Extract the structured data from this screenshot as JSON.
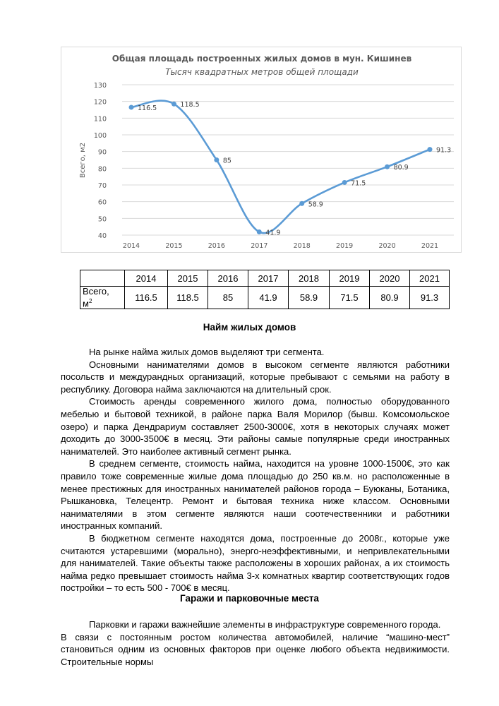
{
  "chart_data": {
    "type": "line",
    "title": "Общая площадь построенных жилых домов в мун. Кишинев",
    "subtitle": "Тысяч квадратных метров общей площади",
    "xlabel": "",
    "ylabel": "Всего, м2",
    "categories": [
      "2014",
      "2015",
      "2016",
      "2017",
      "2018",
      "2019",
      "2020",
      "2021"
    ],
    "values": [
      116.5,
      118.5,
      85,
      41.9,
      58.9,
      71.5,
      80.9,
      91.3
    ],
    "labels": [
      "116.5",
      "118.5",
      "85",
      "41.9",
      "58.9",
      "71.5",
      "80.9",
      "91.3"
    ],
    "ylim": [
      40,
      130
    ],
    "yticks": [
      "40",
      "50",
      "60",
      "70",
      "80",
      "90",
      "100",
      "110",
      "120",
      "130"
    ],
    "grid": true,
    "smooth": true,
    "color": "#5b9bd5"
  },
  "table": {
    "years": [
      "2014",
      "2015",
      "2016",
      "2017",
      "2018",
      "2019",
      "2020",
      "2021"
    ],
    "row_label": "Всего,",
    "row_label_unit": "м",
    "row_label_sup": "2",
    "values": [
      "116.5",
      "118.5",
      "85",
      "41.9",
      "58.9",
      "71.5",
      "80.9",
      "91.3"
    ]
  },
  "section1": {
    "heading": "Найм жилых домов",
    "paragraphs": [
      "На рынке найма жилых домов выделяют три сегмента.",
      "Основными нанимателями домов в высоком сегменте являются работники посольств и междурандных организаций, которые пребывают с семьями на работу в республику. Договора найма заключаются   на длительный срок.",
      "Стоимость аренды современного жилого дома, полностью оборудованного мебелью и бытовой техникой, в районе парка Валя Морилор (бывш. Комсомольское озеро) и парка Дендрариум составляет 2500-3000€, хотя в некоторых случаях может доходить до 3000-3500€ в месяц. Эти районы самые популярные среди иностранных нанимателей. Это наиболее активный сегмент рынка.",
      "В среднем сегменте, стоимость найма, находится на уровне 1000-1500€, это как правило тоже современные жилые дома площадью до 250 кв.м. но расположенные в менее престижных для иностранных нанимателей районов города – Буюканы, Ботаника, Рышкановка, Телецентр. Ремонт и бытовая техника ниже классом. Основными нанимателями в этом сегменте являются наши соотечественники и работники иностранных компаний.",
      "В бюджетном сегменте находятся дома, построенные до 2008г., которые уже считаются устаревшими (морально), энерго-неэффективными, и непривлекательными для нанимателей. Такие объекты также расположены в хороших районах, а их стоимость найма редко превышает стоимость найма 3-х комнатных квартир соответствующих годов постройки – то есть 500 - 700€ в месяц."
    ]
  },
  "section2": {
    "heading": "Гаражи и парковочные места",
    "paragraphs": [
      "Парковки и гаражи важнейшие элементы в инфраструктуре современного города.",
      "В связи с постоянным ростом количества автомобилей, наличие “машино-мест” становиться одним из основных факторов при оценке любого объекта недвижимости. Строительные нормы"
    ]
  }
}
